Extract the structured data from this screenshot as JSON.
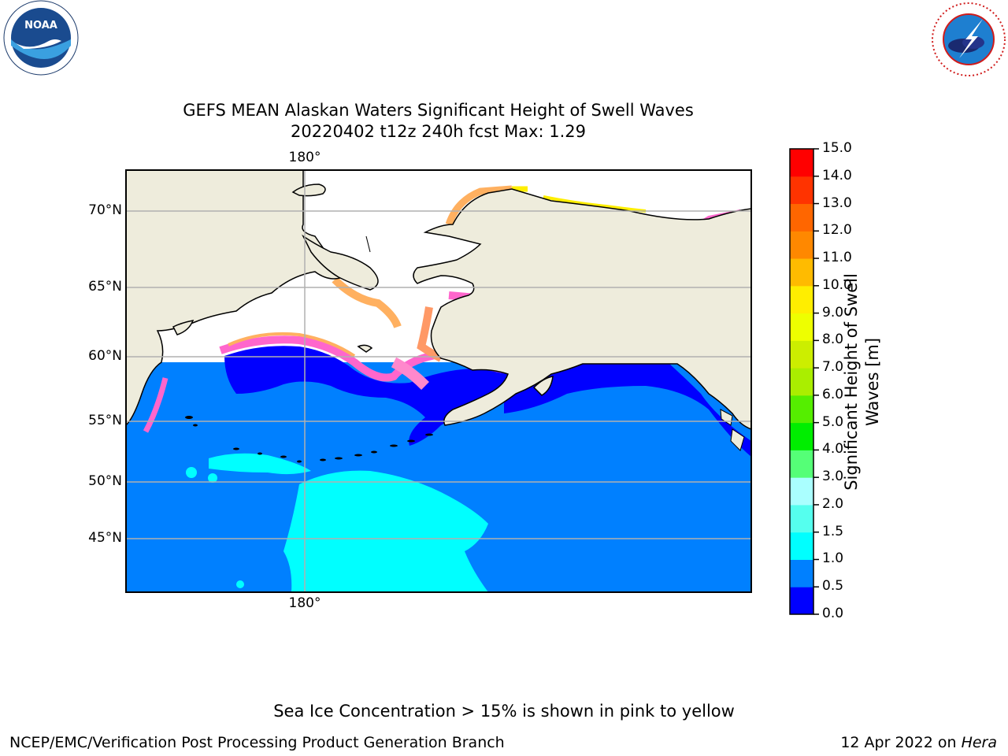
{
  "header": {
    "title_line1": "GEFS MEAN Alaskan Waters Significant Height of Swell Waves",
    "title_line2": "20220402 t12z 240h fcst   Max: 1.29"
  },
  "logos": {
    "noaa_text": "NOAA",
    "noaa_ring_text": "NATIONAL OCEANIC AND ATMOSPHERIC ADMINISTRATION · U.S. DEPARTMENT OF COMMERCE",
    "nws_ring_text": "NATIONAL WEATHER SERVICE"
  },
  "map": {
    "lat_labels": [
      "70°N",
      "65°N",
      "60°N",
      "55°N",
      "50°N",
      "45°N"
    ],
    "lon_label_top": "180°",
    "lon_label_bottom": "180°",
    "colors": {
      "land": "#eeecdc",
      "ice_edge": [
        "#ff66cc",
        "#ffb060",
        "#ffee00"
      ],
      "wave_0_0.5": "#0000ff",
      "wave_0.5_1.0": "#0080ff",
      "wave_1.0_1.5": "#00ffff",
      "grid": "#b0b0b0"
    }
  },
  "colorbar": {
    "label": "Significant Height of Swell Waves [m]",
    "label_line1": "Significant Height of Swell",
    "label_line2": "Waves [m]",
    "ticks": [
      "0.0",
      "0.5",
      "1.0",
      "1.5",
      "2.0",
      "3.0",
      "4.0",
      "5.0",
      "6.0",
      "7.0",
      "8.0",
      "9.0",
      "10.0",
      "11.0",
      "12.0",
      "13.0",
      "14.0",
      "15.0"
    ],
    "colors": [
      "#0000ff",
      "#0080ff",
      "#00ffff",
      "#55ffee",
      "#aaffff",
      "#55ff77",
      "#00ee00",
      "#55ee00",
      "#aaee00",
      "#ccee00",
      "#eeff00",
      "#ffee00",
      "#ffbb00",
      "#ff8800",
      "#ff6600",
      "#ff3300",
      "#ff0000"
    ]
  },
  "footer": {
    "note": "Sea Ice Concentration > 15% is shown in pink to yellow",
    "org": "NCEP/EMC/Verification Post Processing Product Generation Branch",
    "date": "12 Apr 2022 on",
    "machine": "Hera"
  }
}
